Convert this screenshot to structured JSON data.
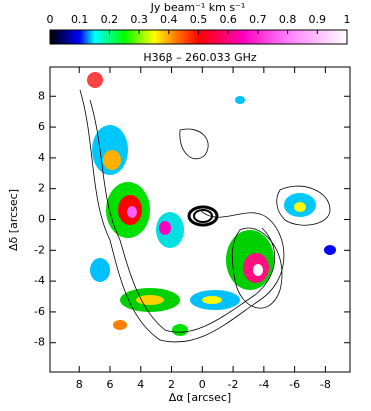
{
  "chart_data": {
    "type": "heatmap",
    "title": "H36β – 260.033 GHz",
    "colorbar_label": "Jy beam⁻¹ km s⁻¹",
    "colorbar_lim": [
      0,
      1
    ],
    "colorbar_ticks": [
      0,
      0.1,
      0.2,
      0.3,
      0.4,
      0.5,
      0.6,
      0.7,
      0.8,
      0.9,
      1
    ],
    "colormap": [
      {
        "value": 0,
        "color": "#000000"
      },
      {
        "value": 0.1,
        "color": "#0000ff"
      },
      {
        "value": 0.15,
        "color": "#00ffff"
      },
      {
        "value": 0.25,
        "color": "#00ff00"
      },
      {
        "value": 0.35,
        "color": "#ffff00"
      },
      {
        "value": 0.42,
        "color": "#ff8000"
      },
      {
        "value": 0.5,
        "color": "#ff0000"
      },
      {
        "value": 0.65,
        "color": "#ff00c0"
      },
      {
        "value": 0.8,
        "color": "#ff80ff"
      },
      {
        "value": 1,
        "color": "#ffffff"
      }
    ],
    "x_label": "Δα [arcsec]",
    "y_label": "Δδ [arcsec]",
    "xlim": [
      9.9,
      -9.6
    ],
    "ylim": [
      -9.9,
      9.9
    ],
    "xticks": [
      8,
      6,
      4,
      2,
      0,
      -2,
      -4,
      -6,
      -8
    ],
    "yticks": [
      -8,
      -6,
      -4,
      -2,
      0,
      2,
      4,
      6,
      8
    ]
  }
}
